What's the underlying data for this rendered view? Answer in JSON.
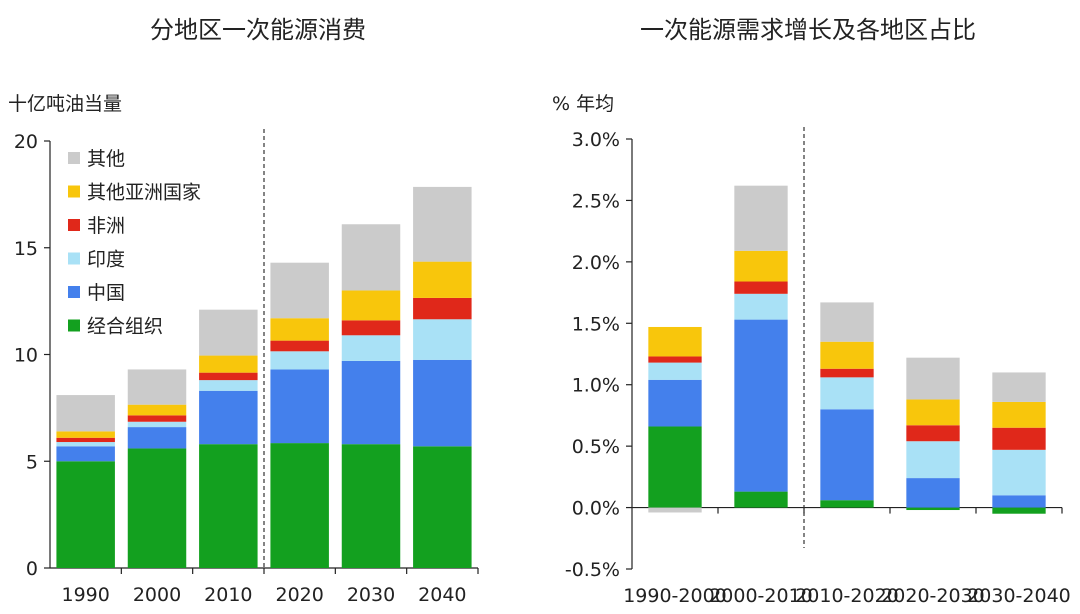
{
  "colors": {
    "其他": "#cbcbcb",
    "其他亚洲国家": "#f8c60c",
    "非洲": "#e0281a",
    "印度": "#a9e1f6",
    "中国": "#4480ec",
    "经合组织": "#13a01f"
  },
  "chart_data": [
    {
      "type": "bar",
      "stacked": true,
      "title": "分地区一次能源消费",
      "ylabel": "十亿吨油当量",
      "xlabel": "",
      "ylim": [
        0,
        20
      ],
      "yticks": [
        "0",
        "5",
        "10",
        "15",
        "20"
      ],
      "yticks_values": [
        0,
        5,
        10,
        15,
        20
      ],
      "categories": [
        "1990",
        "2000",
        "2010",
        "2020",
        "2030",
        "2040"
      ],
      "divider_after_index": 2,
      "legend_position": "top-left",
      "legend": [
        "其他",
        "其他亚洲国家",
        "非洲",
        "印度",
        "中国",
        "经合组织"
      ],
      "series": [
        {
          "name": "经合组织",
          "values": [
            5.0,
            5.6,
            5.8,
            5.85,
            5.8,
            5.7
          ]
        },
        {
          "name": "中国",
          "values": [
            0.7,
            1.0,
            2.5,
            3.45,
            3.9,
            4.05
          ]
        },
        {
          "name": "印度",
          "values": [
            0.2,
            0.25,
            0.5,
            0.85,
            1.2,
            1.9
          ]
        },
        {
          "name": "非洲",
          "values": [
            0.2,
            0.3,
            0.35,
            0.5,
            0.7,
            1.0
          ]
        },
        {
          "name": "其他亚洲国家",
          "values": [
            0.3,
            0.5,
            0.8,
            1.05,
            1.4,
            1.7
          ]
        },
        {
          "name": "其他",
          "values": [
            1.7,
            1.65,
            2.15,
            2.6,
            3.1,
            3.5
          ]
        }
      ]
    },
    {
      "type": "bar",
      "stacked": true,
      "title": "一次能源需求增长及各地区占比",
      "ylabel": "% 年均",
      "xlabel": "",
      "ylim": [
        -0.5,
        3.0
      ],
      "yticks": [
        "-0.5%",
        "0.0%",
        "0.5%",
        "1.0%",
        "1.5%",
        "2.0%",
        "2.5%",
        "3.0%"
      ],
      "yticks_values": [
        -0.5,
        0,
        0.5,
        1.0,
        1.5,
        2.0,
        2.5,
        3.0
      ],
      "categories": [
        "1990-2000",
        "2000-2010",
        "2010-2020",
        "2020-2030",
        "2030-2040"
      ],
      "divider_after_index": 1,
      "series": [
        {
          "name": "经合组织",
          "values": [
            0.66,
            0.13,
            0.06,
            -0.02,
            -0.05
          ]
        },
        {
          "name": "中国",
          "values": [
            0.38,
            1.4,
            0.74,
            0.24,
            0.1
          ]
        },
        {
          "name": "印度",
          "values": [
            0.14,
            0.21,
            0.26,
            0.3,
            0.37
          ]
        },
        {
          "name": "非洲",
          "values": [
            0.05,
            0.1,
            0.07,
            0.13,
            0.18
          ]
        },
        {
          "name": "其他亚洲国家",
          "values": [
            0.24,
            0.25,
            0.22,
            0.21,
            0.21
          ]
        },
        {
          "name": "其他",
          "values": [
            -0.04,
            0.53,
            0.32,
            0.34,
            0.24
          ]
        }
      ]
    }
  ]
}
